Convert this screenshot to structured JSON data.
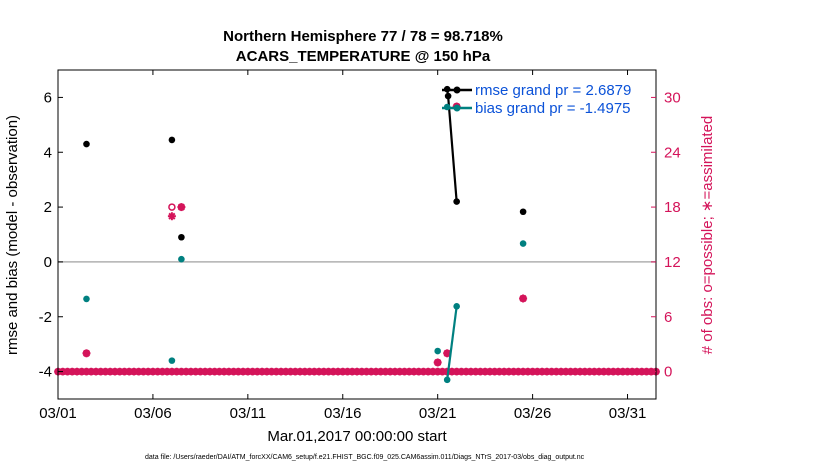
{
  "colors": {
    "rmse": "#000000",
    "bias": "#008080",
    "obs": "#d4145a",
    "legend_text": "#0b52d8",
    "zero_line": "#b0b0b0"
  },
  "footer": "data file: /Users/raeder/DAI/ATM_forcXX/CAM6_setup/f.e21.FHIST_BGC.f09_025.CAM6assim.011/Diags_NTrS_2017-03/obs_diag_output.nc",
  "chart_data": {
    "type": "scatter",
    "title": "Northern Hemisphere 77 / 78 = 98.718%",
    "subtitle": "ACARS_TEMPERATURE @ 150 hPa",
    "xlabel": "Mar.01,2017 00:00:00 start",
    "ylabel": "rmse and bias (model - observation)",
    "y2label": "# of obs: o=possible; ∗=assimilated",
    "xlim": [
      0.0,
      31.5
    ],
    "ylim": [
      -5,
      7
    ],
    "y2lim": [
      -3,
      33
    ],
    "x_ticks": [
      0,
      5,
      10,
      15,
      20,
      25,
      30
    ],
    "x_tick_labels": [
      "03/01",
      "03/06",
      "03/11",
      "03/16",
      "03/21",
      "03/26",
      "03/31"
    ],
    "y_ticks": [
      -4,
      -2,
      0,
      2,
      4,
      6
    ],
    "y_tick_labels": [
      "-4",
      "-2",
      "0",
      "2",
      "4",
      "6"
    ],
    "y2_ticks": [
      0,
      6,
      12,
      18,
      24,
      30
    ],
    "y2_tick_labels": [
      "0",
      "6",
      "12",
      "18",
      "24",
      "30"
    ],
    "legend": {
      "placement": "top-right",
      "entries": [
        "rmse grand pr = 2.6879",
        "bias grand pr = -1.4975"
      ]
    },
    "series": [
      {
        "name": "rmse grand pr = 2.6879",
        "points": [
          {
            "x": 1.5,
            "y": 4.3
          },
          {
            "x": 6.0,
            "y": 4.45
          },
          {
            "x": 6.5,
            "y": 0.9
          },
          {
            "x": 20.5,
            "y": 6.3
          },
          {
            "x": 20.55,
            "y": 6.05
          },
          {
            "x": 21.0,
            "y": 2.2
          },
          {
            "x": 24.5,
            "y": 1.83
          }
        ],
        "lines": [
          [
            3,
            4,
            5
          ]
        ]
      },
      {
        "name": "bias grand pr = -1.4975",
        "points": [
          {
            "x": 1.5,
            "y": -1.35
          },
          {
            "x": 6.0,
            "y": -3.6
          },
          {
            "x": 6.5,
            "y": 0.1
          },
          {
            "x": 20.0,
            "y": -3.25
          },
          {
            "x": 20.5,
            "y": -4.3
          },
          {
            "x": 20.5,
            "y": 5.65
          },
          {
            "x": 21.0,
            "y": -1.62
          },
          {
            "x": 24.5,
            "y": 0.67
          }
        ],
        "lines": [
          [
            4,
            6
          ]
        ]
      }
    ],
    "obs_possible": [
      {
        "x": 1.5,
        "y": 2
      },
      {
        "x": 6.0,
        "y": 18
      },
      {
        "x": 6.5,
        "y": 18
      },
      {
        "x": 20.0,
        "y": 1
      },
      {
        "x": 20.5,
        "y": 2
      },
      {
        "x": 21.0,
        "y": 29
      },
      {
        "x": 24.5,
        "y": 8
      }
    ],
    "obs_assimilated": [
      {
        "x": 1.5,
        "y": 2
      },
      {
        "x": 6.0,
        "y": 17
      },
      {
        "x": 6.5,
        "y": 18
      },
      {
        "x": 20.0,
        "y": 1
      },
      {
        "x": 20.5,
        "y": 2
      },
      {
        "x": 21.0,
        "y": 29
      },
      {
        "x": 24.5,
        "y": 8
      }
    ],
    "obs_zero_start": 0.0,
    "obs_zero_step": 0.25,
    "obs_zero_end": 31.5,
    "zero_line_y": 0,
    "grid": false
  }
}
